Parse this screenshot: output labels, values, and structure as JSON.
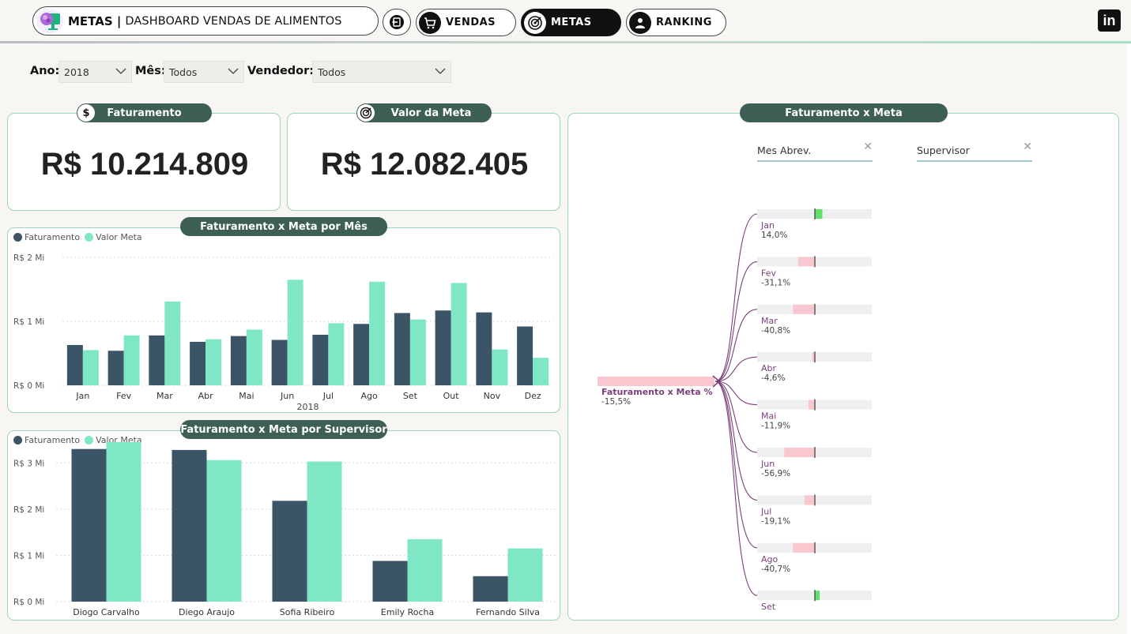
{
  "header": {
    "title_strong": "METAS |",
    "title_rest": "DASHBOARD VENDAS DE ALIMENTOS",
    "nav": [
      {
        "label": "VENDAS",
        "icon": "cart-icon",
        "active": false
      },
      {
        "label": "METAS",
        "icon": "target-icon",
        "active": true
      },
      {
        "label": "RANKING",
        "icon": "person-icon",
        "active": false
      }
    ],
    "linkedin_label": "in"
  },
  "filters": {
    "ano_label": "Ano:",
    "ano_value": "2018",
    "mes_label": "Mês:",
    "mes_value": "Todos",
    "vendedor_label": "Vendedor:",
    "vendedor_value": "Todos"
  },
  "kpis": {
    "faturamento_title": "Faturamento",
    "faturamento_value": "R$ 10.214.809",
    "meta_title": "Valor da Meta",
    "meta_value": "R$ 12.082.405"
  },
  "colors": {
    "faturamento": "#3b5566",
    "valor_meta": "#7fe6c6",
    "accent": "#3d5f55",
    "tree_line": "#7b3f7a",
    "neg_bar": "#f9c7cf",
    "pos_bar": "#5fe06a"
  },
  "chart_data": [
    {
      "type": "bar",
      "title": "Faturamento x Meta por Mês",
      "xlabel": "2018",
      "categories": [
        "Jan",
        "Fev",
        "Mar",
        "Abr",
        "Mai",
        "Jun",
        "Jul",
        "Ago",
        "Set",
        "Out",
        "Nov",
        "Dez"
      ],
      "series": [
        {
          "name": "Faturamento",
          "values": [
            0.63,
            0.54,
            0.78,
            0.68,
            0.77,
            0.71,
            0.79,
            0.96,
            1.13,
            1.17,
            1.14,
            0.92
          ]
        },
        {
          "name": "Valor Meta",
          "values": [
            0.55,
            0.78,
            1.31,
            0.72,
            0.87,
            1.65,
            0.97,
            1.62,
            1.03,
            1.6,
            0.56,
            0.43
          ]
        }
      ],
      "yticks": [
        "R$ 0 Mi",
        "R$ 1 Mi",
        "R$ 2 Mi"
      ],
      "ylim": [
        0,
        2
      ],
      "legend": "top-left"
    },
    {
      "type": "bar",
      "title": "Faturamento x Meta por Supervisor",
      "categories": [
        "Diogo Carvalho",
        "Diego Araujo",
        "Sofia Ribeiro",
        "Emily Rocha",
        "Fernando Silva"
      ],
      "series": [
        {
          "name": "Faturamento",
          "values": [
            3.3,
            3.28,
            2.18,
            0.88,
            0.55
          ]
        },
        {
          "name": "Valor Meta",
          "values": [
            3.45,
            3.06,
            3.03,
            1.35,
            1.15
          ]
        }
      ],
      "yticks": [
        "R$ 0 Mi",
        "R$ 1 Mi",
        "R$ 2 Mi",
        "R$ 3 Mi"
      ],
      "ylim": [
        0,
        3.5
      ],
      "legend": "top-left"
    }
  ],
  "decomposition": {
    "title": "Faturamento x Meta",
    "slicers": [
      "Mes Abrev.",
      "Supervisor"
    ],
    "root_label": "Faturamento x Meta %",
    "root_value": "-15,5%",
    "root_pct": -15.5,
    "nodes": [
      {
        "label": "Jan",
        "value": "14,0%",
        "pct": 14.0
      },
      {
        "label": "Fev",
        "value": "-31,1%",
        "pct": -31.1
      },
      {
        "label": "Mar",
        "value": "-40,8%",
        "pct": -40.8
      },
      {
        "label": "Abr",
        "value": "-4,6%",
        "pct": -4.6
      },
      {
        "label": "Mai",
        "value": "-11,9%",
        "pct": -11.9
      },
      {
        "label": "Jun",
        "value": "-56,9%",
        "pct": -56.9
      },
      {
        "label": "Jul",
        "value": "-19,1%",
        "pct": -19.1
      },
      {
        "label": "Ago",
        "value": "-40,7%",
        "pct": -40.7
      },
      {
        "label": "Set",
        "value": "",
        "pct": 9.0
      }
    ]
  }
}
